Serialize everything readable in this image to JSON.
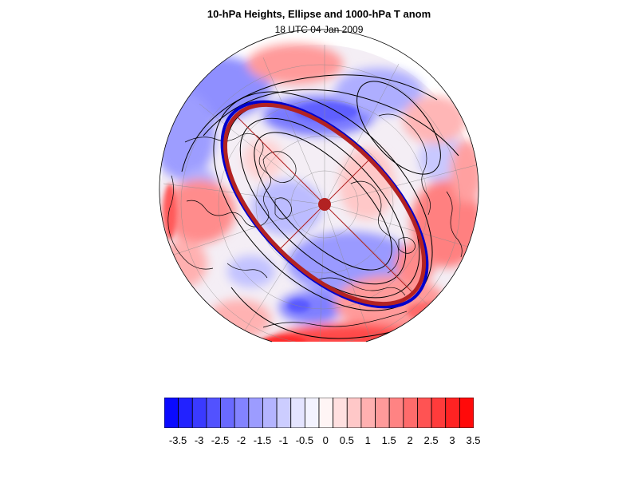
{
  "title": "10-hPa Heights, Ellipse and 1000-hPa T anom",
  "subtitle": "18 UTC 04 Jan 2009",
  "colorbar": {
    "colors": [
      "#0a0aff",
      "#2222ff",
      "#3a3aff",
      "#5252ff",
      "#6a6aff",
      "#8383ff",
      "#9c9cff",
      "#b4b4ff",
      "#cccdff",
      "#e4e4ff",
      "#f3f3ff",
      "#fff5f5",
      "#ffe0e0",
      "#ffc8c8",
      "#ffb0b0",
      "#ff9a9a",
      "#ff8383",
      "#ff6b6b",
      "#ff5353",
      "#ff3b3b",
      "#ff2323",
      "#ff0a0a"
    ],
    "labels": [
      "-3.5",
      "-3",
      "-2.5",
      "-2",
      "-1.5",
      "-1",
      "-0.5",
      "0",
      "0.5",
      "1",
      "1.5",
      "2",
      "2.5",
      "3",
      "3.5"
    ]
  },
  "map": {
    "projection": "polar stereographic, north pole centered",
    "ellipse_color": "#b22222",
    "height_contour_color": "#000000",
    "coastline_color": "#000000"
  }
}
